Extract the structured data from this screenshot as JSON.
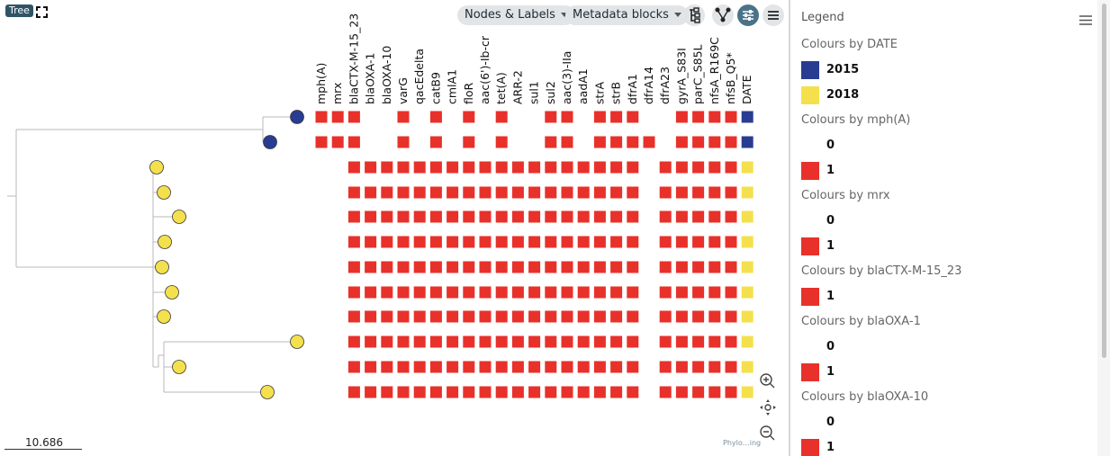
{
  "tree_panel": {
    "tag_label": "Tree",
    "nodes_labels_label": "Nodes & Labels",
    "metadata_blocks_label": "Metadata blocks",
    "scale_label": "10.686",
    "brand_text": "Phylo…ing"
  },
  "metadata": {
    "columns": [
      "mph(A)",
      "mrx",
      "blaCTX-M-15_23",
      "blaOXA-1",
      "blaOXA-10",
      "varG",
      "qacEdelta",
      "catB9",
      "cmlA1",
      "floR",
      "aac(6')-Ib-cr",
      "tet(A)",
      "ARR-2",
      "sul1",
      "sul2",
      "aac(3)-IIa",
      "aadA1",
      "strA",
      "strB",
      "dfrA1",
      "dfrA14",
      "dfrA23",
      "gyrA_S83I",
      "parC_S85L",
      "nfsA_R169C",
      "nfsB_Q5*",
      "DATE"
    ],
    "colors": {
      "present": "#e8312a",
      "date_2015": "#283c92",
      "date_2018": "#f4e04c"
    },
    "rows": [
      {
        "date": "2015",
        "present": [
          1,
          1,
          1,
          0,
          0,
          1,
          0,
          1,
          0,
          1,
          0,
          1,
          0,
          0,
          1,
          1,
          0,
          1,
          1,
          1,
          0,
          0,
          1,
          1,
          1,
          1
        ]
      },
      {
        "date": "2015",
        "present": [
          1,
          1,
          1,
          0,
          0,
          1,
          0,
          1,
          0,
          1,
          0,
          1,
          0,
          0,
          1,
          1,
          0,
          1,
          1,
          1,
          1,
          0,
          1,
          1,
          1,
          1
        ]
      },
      {
        "date": "2018",
        "present": [
          0,
          0,
          1,
          1,
          1,
          1,
          1,
          1,
          1,
          1,
          1,
          1,
          1,
          1,
          1,
          1,
          1,
          1,
          1,
          1,
          0,
          1,
          1,
          1,
          1,
          1
        ]
      },
      {
        "date": "2018",
        "present": [
          0,
          0,
          1,
          1,
          1,
          1,
          1,
          1,
          1,
          1,
          1,
          1,
          1,
          1,
          1,
          1,
          1,
          1,
          1,
          1,
          0,
          1,
          1,
          1,
          1,
          1
        ]
      },
      {
        "date": "2018",
        "present": [
          0,
          0,
          1,
          1,
          1,
          1,
          1,
          1,
          1,
          1,
          1,
          1,
          1,
          1,
          1,
          1,
          1,
          1,
          1,
          1,
          0,
          1,
          1,
          1,
          1,
          1
        ]
      },
      {
        "date": "2018",
        "present": [
          0,
          0,
          1,
          1,
          1,
          1,
          1,
          1,
          1,
          1,
          1,
          1,
          1,
          1,
          1,
          1,
          1,
          1,
          1,
          1,
          0,
          1,
          1,
          1,
          1,
          1
        ]
      },
      {
        "date": "2018",
        "present": [
          0,
          0,
          1,
          1,
          1,
          1,
          1,
          1,
          1,
          1,
          1,
          1,
          1,
          1,
          1,
          1,
          1,
          1,
          1,
          1,
          0,
          1,
          1,
          1,
          1,
          1
        ]
      },
      {
        "date": "2018",
        "present": [
          0,
          0,
          1,
          1,
          1,
          1,
          1,
          1,
          1,
          1,
          1,
          1,
          1,
          1,
          1,
          1,
          1,
          1,
          1,
          1,
          0,
          1,
          1,
          1,
          1,
          1
        ]
      },
      {
        "date": "2018",
        "present": [
          0,
          0,
          1,
          1,
          1,
          1,
          1,
          1,
          1,
          1,
          1,
          1,
          1,
          1,
          1,
          1,
          1,
          1,
          1,
          1,
          0,
          1,
          1,
          1,
          1,
          1
        ]
      },
      {
        "date": "2018",
        "present": [
          0,
          0,
          1,
          1,
          1,
          1,
          1,
          1,
          1,
          1,
          1,
          1,
          1,
          1,
          1,
          1,
          1,
          1,
          1,
          1,
          0,
          1,
          1,
          1,
          1,
          1
        ]
      },
      {
        "date": "2018",
        "present": [
          0,
          0,
          1,
          1,
          1,
          1,
          1,
          1,
          1,
          1,
          1,
          1,
          1,
          1,
          1,
          1,
          1,
          1,
          1,
          1,
          0,
          1,
          1,
          1,
          1,
          1
        ]
      },
      {
        "date": "2018",
        "present": [
          0,
          0,
          1,
          1,
          1,
          1,
          1,
          1,
          1,
          1,
          1,
          1,
          1,
          1,
          1,
          1,
          1,
          1,
          1,
          1,
          0,
          1,
          1,
          1,
          1,
          1
        ]
      }
    ]
  },
  "legend": {
    "title": "Legend",
    "sections": [
      {
        "heading": "Colours by DATE",
        "entries": [
          {
            "label": "2015",
            "color": "#283c92"
          },
          {
            "label": "2018",
            "color": "#f4e04c"
          }
        ]
      },
      {
        "heading": "Colours by mph(A)",
        "entries": [
          {
            "label": "0",
            "color": "transparent"
          },
          {
            "label": "1",
            "color": "#e8312a"
          }
        ]
      },
      {
        "heading": "Colours by mrx",
        "entries": [
          {
            "label": "0",
            "color": "transparent"
          },
          {
            "label": "1",
            "color": "#e8312a"
          }
        ]
      },
      {
        "heading": "Colours by blaCTX-M-15_23",
        "entries": [
          {
            "label": "1",
            "color": "#e8312a"
          }
        ]
      },
      {
        "heading": "Colours by blaOXA-1",
        "entries": [
          {
            "label": "0",
            "color": "transparent"
          },
          {
            "label": "1",
            "color": "#e8312a"
          }
        ]
      },
      {
        "heading": "Colours by blaOXA-10",
        "entries": [
          {
            "label": "0",
            "color": "transparent"
          },
          {
            "label": "1",
            "color": "#e8312a"
          }
        ]
      }
    ]
  }
}
